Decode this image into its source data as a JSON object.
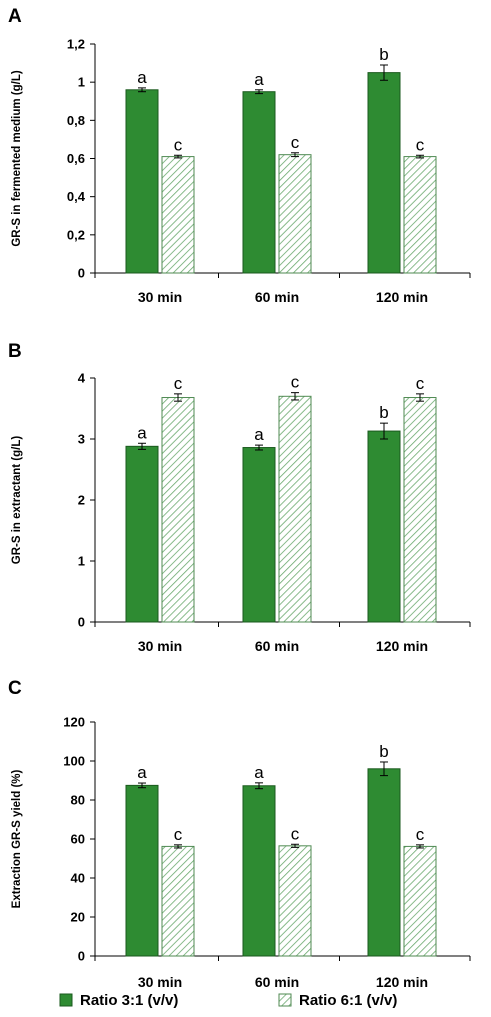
{
  "colors": {
    "ratio31": "#2e8b32",
    "ratio61_fill": "#ffffff",
    "ratio61_hatch": "#6aa96e",
    "bar_stroke": "#1a5a1d"
  },
  "legend": [
    {
      "label": "Ratio 3:1 (v/v)",
      "pattern": "solid"
    },
    {
      "label": "Ratio 6:1 (v/v)",
      "pattern": "hatched"
    }
  ],
  "chart_data": [
    {
      "panel": "A",
      "type": "bar",
      "ylabel": "GR-S in fermented medium (g/L)",
      "ylim": [
        0,
        1.2
      ],
      "yticks": [
        "0",
        "0,2",
        "0,4",
        "0,6",
        "0,8",
        "1",
        "1,2"
      ],
      "categories": [
        "30 min",
        "60 min",
        "120 min"
      ],
      "series": [
        {
          "values": [
            0.96,
            0.95,
            1.05
          ],
          "errors": [
            0.01,
            0.01,
            0.04
          ],
          "letters": [
            "a",
            "a",
            "b"
          ]
        },
        {
          "values": [
            0.61,
            0.62,
            0.61
          ],
          "errors": [
            0.007,
            0.01,
            0.007
          ],
          "letters": [
            "c",
            "c",
            "c"
          ]
        }
      ]
    },
    {
      "panel": "B",
      "type": "bar",
      "ylabel": "GR-S in extractant (g/L)",
      "ylim": [
        0,
        4
      ],
      "yticks": [
        "0",
        "1",
        "2",
        "3",
        "4"
      ],
      "categories": [
        "30 min",
        "60 min",
        "120 min"
      ],
      "series": [
        {
          "values": [
            2.88,
            2.86,
            3.13
          ],
          "errors": [
            0.05,
            0.04,
            0.13
          ],
          "letters": [
            "a",
            "a",
            "b"
          ]
        },
        {
          "values": [
            3.68,
            3.7,
            3.68
          ],
          "errors": [
            0.06,
            0.06,
            0.06
          ],
          "letters": [
            "c",
            "c",
            "c"
          ]
        }
      ]
    },
    {
      "panel": "C",
      "type": "bar",
      "ylabel": "Extraction GR-S yield (%)",
      "ylim": [
        0,
        120
      ],
      "yticks": [
        "0",
        "20",
        "40",
        "60",
        "80",
        "100",
        "120"
      ],
      "categories": [
        "30 min",
        "60 min",
        "120 min"
      ],
      "series": [
        {
          "values": [
            87.5,
            87.3,
            96.0
          ],
          "errors": [
            1.2,
            1.5,
            3.5
          ],
          "letters": [
            "a",
            "a",
            "b"
          ]
        },
        {
          "values": [
            56.2,
            56.5,
            56.2
          ],
          "errors": [
            0.8,
            0.8,
            0.8
          ],
          "letters": [
            "c",
            "c",
            "c"
          ]
        }
      ]
    }
  ]
}
